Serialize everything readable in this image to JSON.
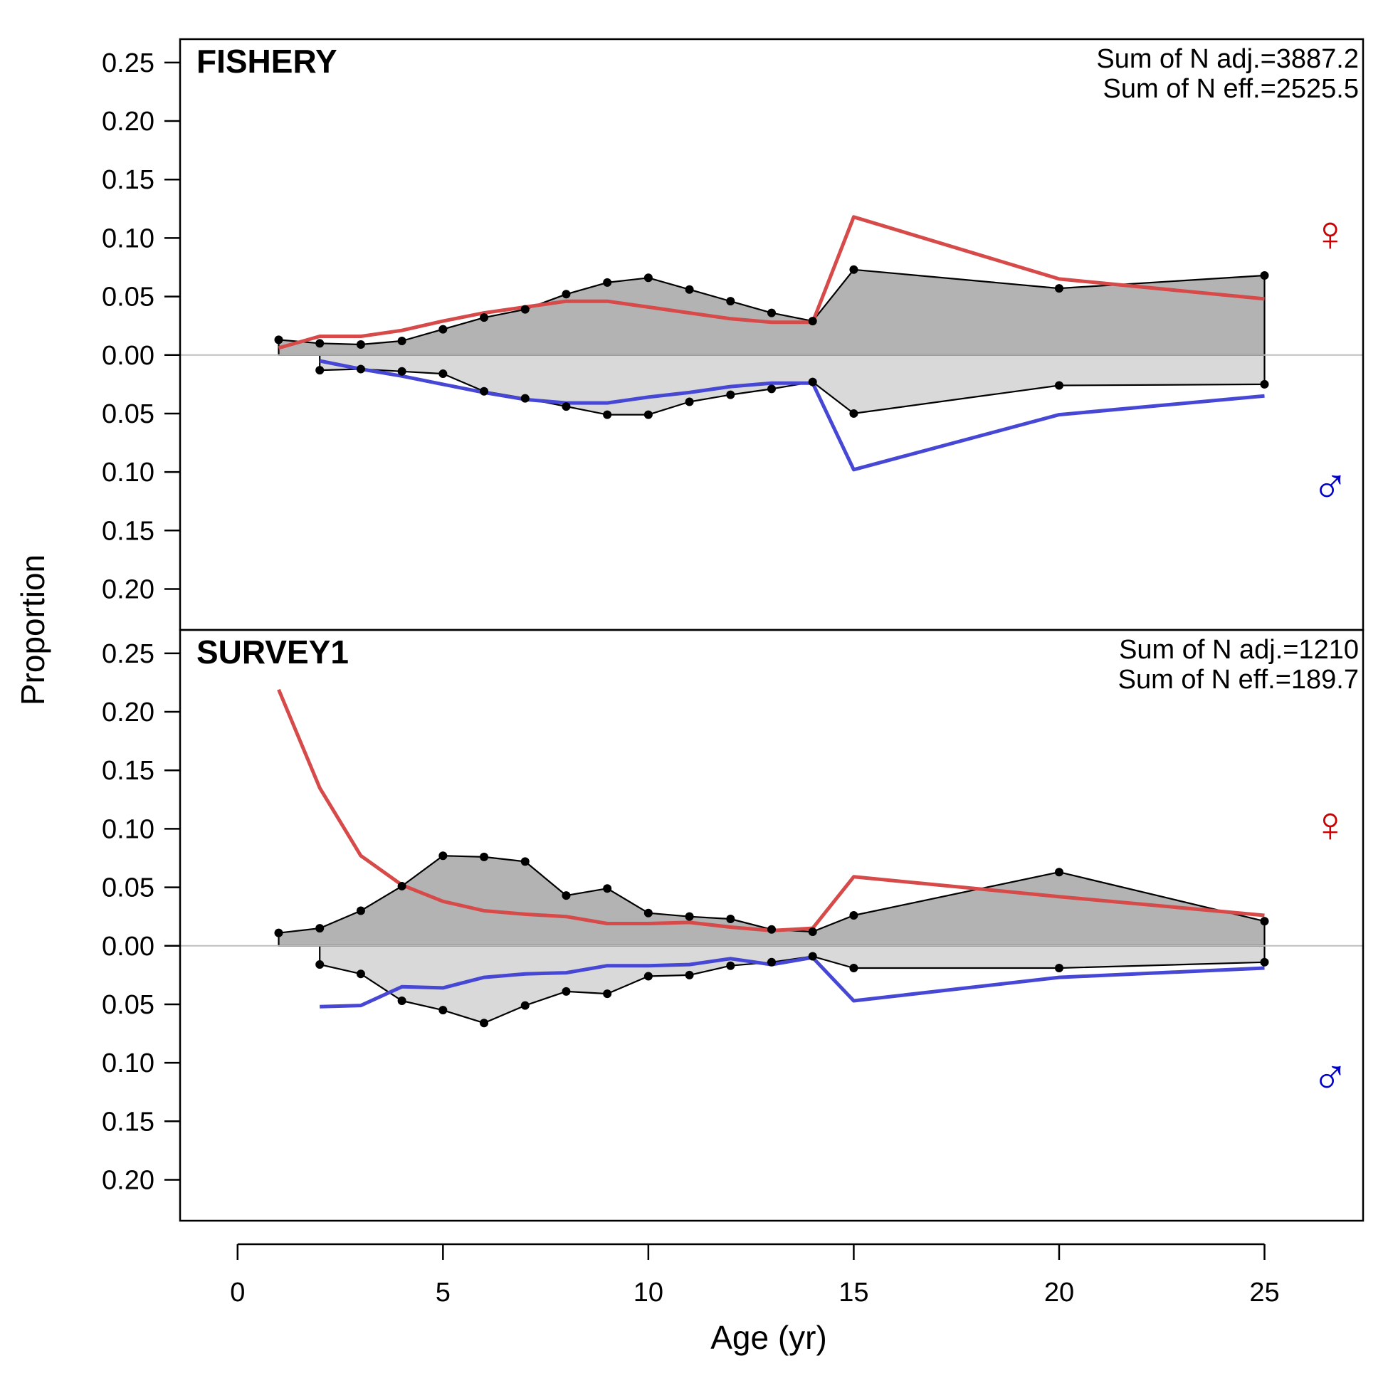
{
  "chart_data": {
    "type": "area",
    "xlabel": "Age (yr)",
    "ylabel": "Proportion",
    "x_ticks": [
      0,
      5,
      10,
      15,
      20,
      25
    ],
    "xlim": [
      -1.4,
      27.4
    ],
    "y_tick_labels": [
      "0.25",
      "0.20",
      "0.15",
      "0.10",
      "0.05",
      "0.00",
      "0.05",
      "0.10",
      "0.15",
      "0.20"
    ],
    "y_tick_values": [
      0.25,
      0.2,
      0.15,
      0.1,
      0.05,
      0.0,
      -0.05,
      -0.1,
      -0.15,
      -0.2
    ],
    "ylim": [
      -0.235,
      0.27
    ],
    "grid": false,
    "colors": {
      "female_obs_fill": "#b3b3b3",
      "male_obs_fill": "#d9d9d9",
      "female_expected": "#d64a4a",
      "male_expected": "#4747d6",
      "female_symbol": "#cc0000",
      "male_symbol": "#0000cc",
      "zero_line": "#bebebe"
    },
    "sex_symbols": {
      "female": "♀",
      "male": "♂"
    },
    "panels": [
      {
        "title": "FISHERY",
        "annotations": [
          "Sum of N adj.=3887.2",
          "Sum of N eff.=2525.5"
        ],
        "female_observed": {
          "x": [
            1,
            2,
            3,
            4,
            5,
            6,
            7,
            8,
            9,
            10,
            11,
            12,
            13,
            14,
            15,
            20,
            25
          ],
          "values": [
            0.013,
            0.01,
            0.009,
            0.012,
            0.022,
            0.032,
            0.039,
            0.052,
            0.062,
            0.066,
            0.056,
            0.046,
            0.036,
            0.029,
            0.073,
            0.057,
            0.068
          ]
        },
        "female_expected": {
          "x": [
            1,
            2,
            3,
            4,
            5,
            6,
            7,
            8,
            9,
            10,
            11,
            12,
            13,
            14,
            15,
            20,
            25
          ],
          "values": [
            0.006,
            0.016,
            0.016,
            0.021,
            0.029,
            0.036,
            0.041,
            0.046,
            0.046,
            0.041,
            0.036,
            0.031,
            0.028,
            0.028,
            0.118,
            0.065,
            0.048
          ]
        },
        "male_observed": {
          "x": [
            2,
            3,
            4,
            5,
            6,
            7,
            8,
            9,
            10,
            11,
            12,
            13,
            14,
            15,
            20,
            25
          ],
          "values": [
            -0.013,
            -0.012,
            -0.014,
            -0.016,
            -0.031,
            -0.037,
            -0.044,
            -0.051,
            -0.051,
            -0.04,
            -0.034,
            -0.029,
            -0.023,
            -0.05,
            -0.026,
            -0.025
          ]
        },
        "male_expected": {
          "x": [
            2,
            3,
            4,
            5,
            6,
            7,
            8,
            9,
            10,
            11,
            12,
            13,
            14,
            15,
            20,
            25
          ],
          "values": [
            -0.005,
            -0.012,
            -0.018,
            -0.025,
            -0.032,
            -0.038,
            -0.041,
            -0.041,
            -0.036,
            -0.032,
            -0.027,
            -0.024,
            -0.024,
            -0.098,
            -0.051,
            -0.035
          ]
        }
      },
      {
        "title": "SURVEY1",
        "annotations": [
          "Sum of N adj.=1210",
          "Sum of N eff.=189.7"
        ],
        "female_observed": {
          "x": [
            1,
            2,
            3,
            4,
            5,
            6,
            7,
            8,
            9,
            10,
            11,
            12,
            13,
            14,
            15,
            20,
            25
          ],
          "values": [
            0.011,
            0.015,
            0.03,
            0.051,
            0.077,
            0.076,
            0.072,
            0.043,
            0.049,
            0.028,
            0.025,
            0.023,
            0.014,
            0.012,
            0.026,
            0.063,
            0.021
          ]
        },
        "female_expected": {
          "x": [
            1,
            2,
            3,
            4,
            5,
            6,
            7,
            8,
            9,
            10,
            11,
            12,
            13,
            14,
            15,
            20,
            25
          ],
          "values": [
            0.219,
            0.135,
            0.077,
            0.052,
            0.038,
            0.03,
            0.027,
            0.025,
            0.019,
            0.019,
            0.02,
            0.016,
            0.013,
            0.015,
            0.059,
            0.042,
            0.026
          ]
        },
        "male_observed": {
          "x": [
            2,
            3,
            4,
            5,
            6,
            7,
            8,
            9,
            10,
            11,
            12,
            13,
            14,
            15,
            20,
            25
          ],
          "values": [
            -0.016,
            -0.024,
            -0.047,
            -0.055,
            -0.066,
            -0.051,
            -0.039,
            -0.041,
            -0.026,
            -0.025,
            -0.017,
            -0.014,
            -0.009,
            -0.019,
            -0.019,
            -0.014
          ]
        },
        "male_expected": {
          "x": [
            2,
            3,
            4,
            5,
            6,
            7,
            8,
            9,
            10,
            11,
            12,
            13,
            14,
            15,
            20,
            25
          ],
          "values": [
            -0.052,
            -0.051,
            -0.035,
            -0.036,
            -0.027,
            -0.024,
            -0.023,
            -0.017,
            -0.017,
            -0.016,
            -0.011,
            -0.016,
            -0.01,
            -0.047,
            -0.027,
            -0.019
          ]
        }
      }
    ]
  }
}
